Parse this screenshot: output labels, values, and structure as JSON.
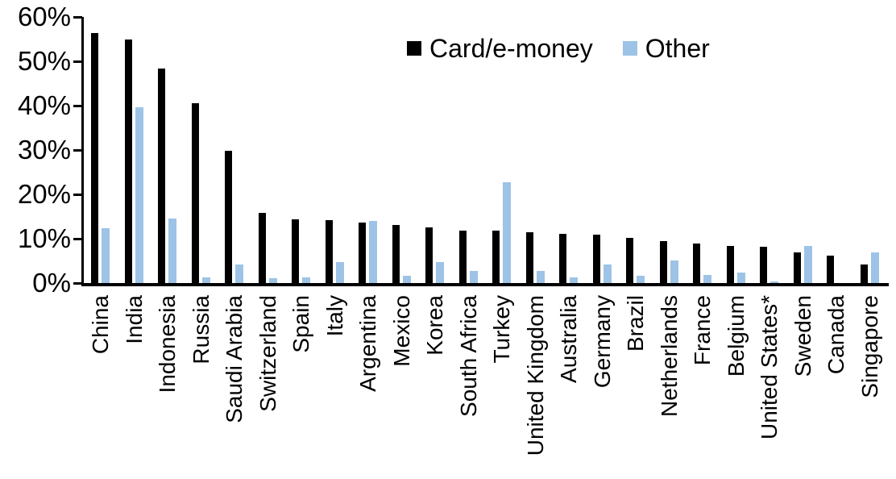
{
  "chart_data": {
    "type": "bar",
    "title": "",
    "xlabel": "",
    "ylabel": "",
    "ylim": [
      0,
      60
    ],
    "yticks": [
      0,
      10,
      20,
      30,
      40,
      50,
      60
    ],
    "ytick_suffix": "%",
    "grid": false,
    "legend_position": "top-center",
    "categories": [
      "China",
      "India",
      "Indonesia",
      "Russia",
      "Saudi Arabia",
      "Switzerland",
      "Spain",
      "Italy",
      "Argentina",
      "Mexico",
      "Korea",
      "South Africa",
      "Turkey",
      "United Kingdom",
      "Australia",
      "Germany",
      "Brazil",
      "Netherlands",
      "France",
      "Belgium",
      "United States*",
      "Sweden",
      "Canada",
      "Singapore"
    ],
    "series": [
      {
        "name": "Card/e-money",
        "color": "#000000",
        "values": [
          56.3,
          55.0,
          48.4,
          40.5,
          29.9,
          15.8,
          14.3,
          14.2,
          13.7,
          13.1,
          12.5,
          11.9,
          11.8,
          11.4,
          11.1,
          10.9,
          10.2,
          9.5,
          8.9,
          8.4,
          8.2,
          6.9,
          6.2,
          4.1
        ]
      },
      {
        "name": "Other",
        "color": "#9DC3E6",
        "values": [
          12.4,
          39.7,
          14.6,
          1.2,
          4.1,
          1.1,
          1.3,
          4.8,
          14.0,
          1.7,
          4.8,
          2.7,
          22.8,
          2.7,
          1.2,
          4.2,
          1.6,
          5.1,
          1.8,
          2.4,
          0.4,
          8.4,
          0.0,
          7.0
        ]
      }
    ]
  },
  "legend": {
    "items": [
      {
        "label": "Card/e-money",
        "color": "#000000"
      },
      {
        "label": "Other",
        "color": "#9DC3E6"
      }
    ]
  }
}
